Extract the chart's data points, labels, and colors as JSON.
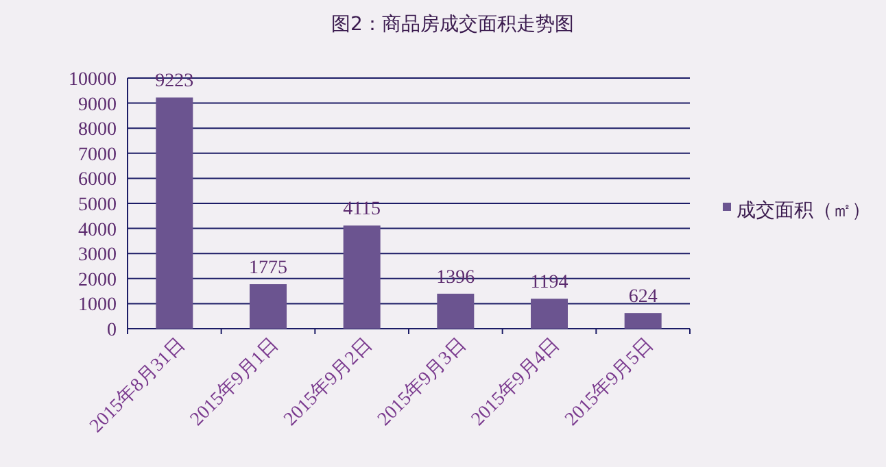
{
  "chart_data": {
    "type": "bar",
    "title": "图2：商品房成交面积走势图",
    "categories": [
      "2015年8月31日",
      "2015年9月1日",
      "2015年9月2日",
      "2015年9月3日",
      "2015年9月4日",
      "2015年9月5日"
    ],
    "series": [
      {
        "name": "成交面积（㎡）",
        "color": "#6b5490",
        "values": [
          9223,
          1775,
          4115,
          1396,
          1194,
          624
        ]
      }
    ],
    "ylim": [
      0,
      10000
    ],
    "yticks": [
      0,
      1000,
      2000,
      3000,
      4000,
      5000,
      6000,
      7000,
      8000,
      9000,
      10000
    ],
    "grid": "y",
    "legend": "right",
    "data_labels": true
  }
}
